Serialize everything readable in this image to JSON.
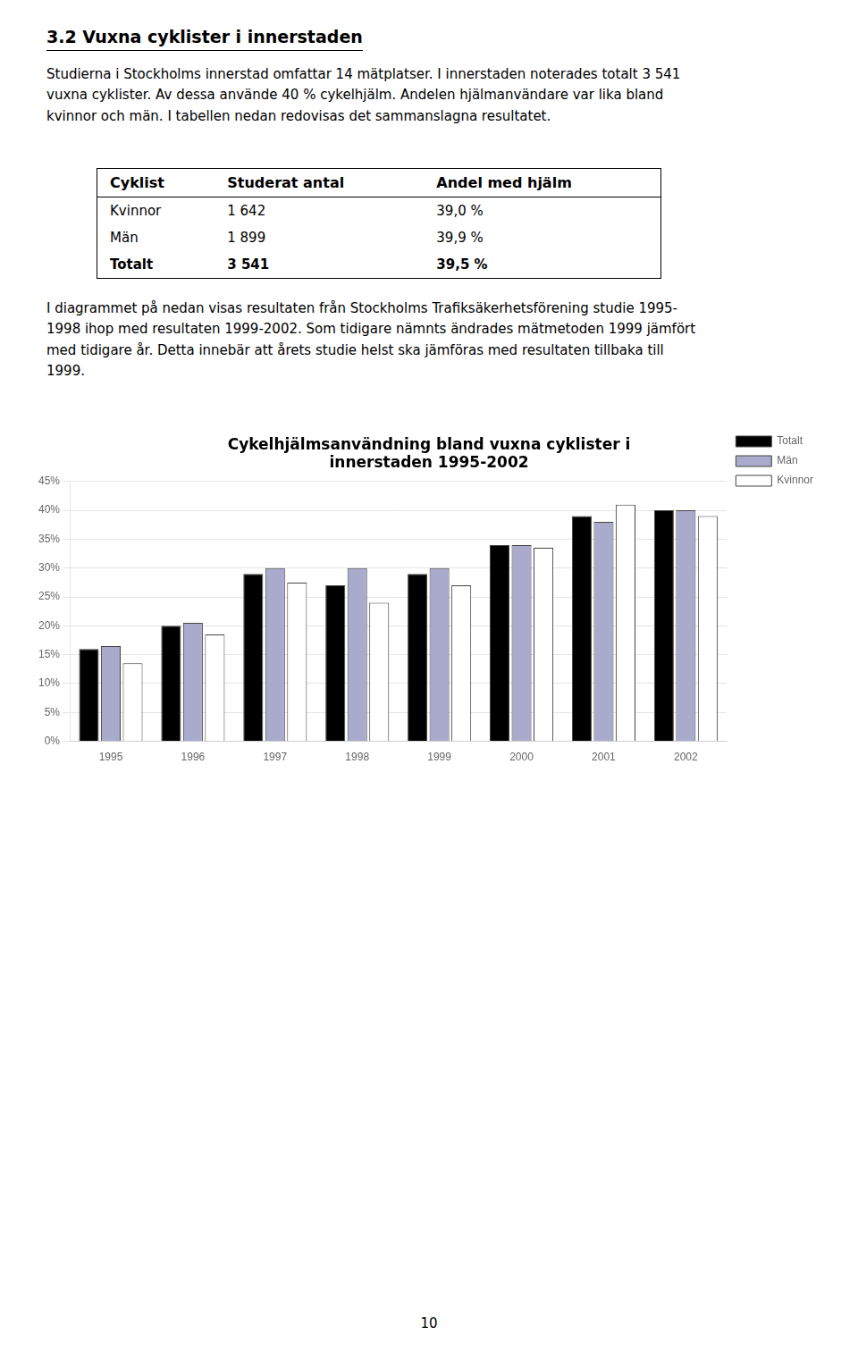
{
  "heading": "3.2 Vuxna cyklister i innerstaden",
  "paragraphs": [
    "Studierna i Stockholms innerstad omfattar 14 mätplatser. I innerstaden noterades totalt 3 541\nvuxna cyklister. Av dessa använde 40 % cykelhjälm. Andelen hjälmanvändare var lika bland\nkvinnor och män. I tabellen nedan redovisas det sammanslagna resultatet.",
    "I diagrammet på nedan visas resultaten från Stockholms Trafiksäkerhetsförening studie 1995-\n1998 ihop med resultaten 1999-2002. Som tidigare nämnts ändrades mätmetoden 1999 jämfört\nmed tidigare år. Detta innebär att årets studie helst ska jämföras med resultaten tillbaka till\n1999."
  ],
  "table": {
    "header": [
      "Cyklist",
      "Studerat antal",
      "Andel med hjälm"
    ],
    "rows": [
      [
        "Kvinnor",
        "1 642",
        "39,0 %"
      ],
      [
        "Män",
        "1 899",
        "39,9 %"
      ],
      [
        "Totalt",
        "3 541",
        "39,5 %"
      ]
    ]
  },
  "chart_data": {
    "type": "bar",
    "title": [
      "Cykelhjälmsanvändning bland vuxna cyklister i",
      "innerstaden 1995-2002"
    ],
    "categories": [
      "1995",
      "1996",
      "1997",
      "1998",
      "1999",
      "2000",
      "2001",
      "2002"
    ],
    "series": [
      {
        "name": "Totalt",
        "color": "#000000",
        "values": [
          0.16,
          0.2,
          0.29,
          0.27,
          0.29,
          0.34,
          0.39,
          0.4
        ]
      },
      {
        "name": "Män",
        "color": "#aaaacc",
        "values": [
          0.165,
          0.205,
          0.3,
          0.3,
          0.3,
          0.34,
          0.38,
          0.4
        ]
      },
      {
        "name": "Kvinnor",
        "color": "#ffffff",
        "values": [
          0.135,
          0.185,
          0.275,
          0.24,
          0.27,
          0.335,
          0.41,
          0.39
        ]
      }
    ],
    "ylim": [
      0,
      0.45
    ],
    "yticks": [
      {
        "value": 0.0,
        "label": "0%"
      },
      {
        "value": 0.05,
        "label": "5%"
      },
      {
        "value": 0.1,
        "label": "10%"
      },
      {
        "value": 0.15,
        "label": "15%"
      },
      {
        "value": 0.2,
        "label": "20%"
      },
      {
        "value": 0.25,
        "label": "25%"
      },
      {
        "value": 0.3,
        "label": "30%"
      },
      {
        "value": 0.35,
        "label": "35%"
      },
      {
        "value": 0.4,
        "label": "40%"
      },
      {
        "value": 0.45,
        "label": "45%"
      }
    ],
    "grid": true,
    "legend": "upper right"
  },
  "page_number": "10"
}
